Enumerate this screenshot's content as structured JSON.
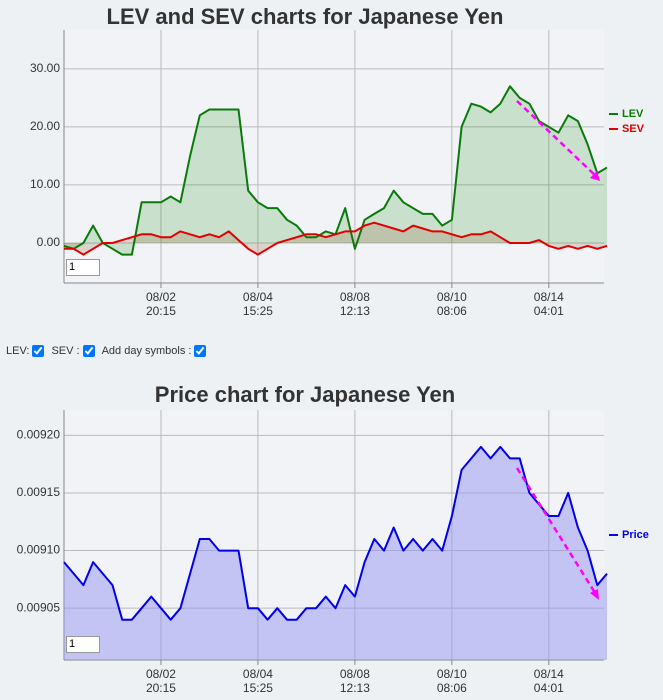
{
  "chart_data": [
    {
      "type": "line",
      "title": "LEV and SEV charts for Japanese Yen",
      "categories": [
        null,
        null,
        null,
        null,
        null,
        null,
        null,
        null,
        null,
        null,
        "08/02\n20:15",
        null,
        null,
        null,
        null,
        null,
        null,
        null,
        null,
        null,
        "08/04\n15:25",
        null,
        null,
        null,
        null,
        null,
        null,
        null,
        null,
        null,
        "08/08\n12:13",
        null,
        null,
        null,
        null,
        null,
        null,
        null,
        null,
        null,
        "08/10\n08:06",
        null,
        null,
        null,
        null,
        null,
        null,
        null,
        null,
        null,
        "08/14\n04:01",
        null,
        null,
        null,
        null,
        null,
        null
      ],
      "series": [
        {
          "name": "LEV",
          "color": "#0a7a0a",
          "fill": "rgba(0,128,0,0.17)",
          "values": [
            -0.5,
            -1,
            0,
            3,
            0,
            -1,
            -2,
            -2,
            7,
            7,
            7,
            8,
            7,
            15,
            22,
            23,
            23,
            23,
            23,
            9,
            7,
            6,
            6,
            4,
            3,
            1,
            1,
            2,
            1.5,
            6,
            -1,
            4,
            5,
            6,
            9,
            7,
            6,
            5,
            5,
            3,
            4,
            20,
            24,
            23.5,
            22.5,
            24,
            27,
            25,
            24,
            21,
            20,
            19,
            22,
            21,
            17,
            12,
            13
          ]
        },
        {
          "name": "SEV",
          "color": "#e00000",
          "fill": "rgba(150,80,40,0.2)",
          "values": [
            -1,
            -1,
            -2,
            -1,
            0,
            0,
            0.5,
            1,
            1.5,
            1.5,
            1,
            1,
            2,
            1.5,
            1,
            1.5,
            1,
            2,
            0.5,
            -1,
            -2,
            -1,
            0,
            0.5,
            1,
            1.5,
            1.5,
            1,
            1.5,
            2,
            2,
            3,
            3.5,
            3,
            2.5,
            2,
            3,
            2.5,
            2,
            2,
            1.5,
            1,
            1.5,
            1.5,
            2,
            1,
            0,
            0,
            0,
            0.5,
            -0.5,
            -1,
            -0.5,
            -1,
            -0.5,
            -1,
            -0.5
          ]
        }
      ],
      "ylim": [
        -6.9,
        36.7
      ],
      "yticks": [
        {
          "value": 0,
          "label": "0.00"
        },
        {
          "value": 10,
          "label": "10.00"
        },
        {
          "value": 20,
          "label": "20.00"
        },
        {
          "value": 30,
          "label": "30.00"
        }
      ],
      "grid": true,
      "legend": "right"
    },
    {
      "type": "line",
      "title": "Price chart for Japanese Yen",
      "categories": [
        null,
        null,
        null,
        null,
        null,
        null,
        null,
        null,
        null,
        null,
        "08/02\n20:15",
        null,
        null,
        null,
        null,
        null,
        null,
        null,
        null,
        null,
        "08/04\n15:25",
        null,
        null,
        null,
        null,
        null,
        null,
        null,
        null,
        null,
        "08/08\n12:13",
        null,
        null,
        null,
        null,
        null,
        null,
        null,
        null,
        null,
        "08/10\n08:06",
        null,
        null,
        null,
        null,
        null,
        null,
        null,
        null,
        null,
        "08/14\n04:01",
        null,
        null,
        null,
        null,
        null,
        null
      ],
      "series": [
        {
          "name": "Price",
          "color": "#0000ee",
          "fill": "rgba(150,150,240,0.5)",
          "values": [
            0.00909,
            0.00908,
            0.00907,
            0.00909,
            0.00908,
            0.00907,
            0.00904,
            0.00904,
            0.00905,
            0.00906,
            0.00905,
            0.00904,
            0.00905,
            0.00908,
            0.00911,
            0.00911,
            0.0091,
            0.0091,
            0.0091,
            0.00905,
            0.00905,
            0.00904,
            0.00905,
            0.00904,
            0.00904,
            0.00905,
            0.00905,
            0.00906,
            0.00905,
            0.00907,
            0.00906,
            0.00909,
            0.00911,
            0.0091,
            0.00912,
            0.0091,
            0.00911,
            0.0091,
            0.00911,
            0.0091,
            0.00913,
            0.00917,
            0.00918,
            0.00919,
            0.00918,
            0.00919,
            0.00918,
            0.00918,
            0.00915,
            0.00914,
            0.00913,
            0.00913,
            0.00915,
            0.00912,
            0.0091,
            0.00907,
            0.00908
          ]
        }
      ],
      "ylim": [
        0.009005,
        0.009222
      ],
      "yticks": [
        {
          "value": 0.00905,
          "label": "0.00905"
        },
        {
          "value": 0.0091,
          "label": "0.00910"
        },
        {
          "value": 0.00915,
          "label": "0.00915"
        },
        {
          "value": 0.0092,
          "label": "0.00920"
        }
      ],
      "grid": true,
      "legend": "right"
    }
  ],
  "controls": {
    "lev_label": "LEV:",
    "sev_label": "SEV :",
    "day_symbols_label": "Add day symbols :",
    "zoom_inputs": [
      "1",
      "1"
    ]
  }
}
